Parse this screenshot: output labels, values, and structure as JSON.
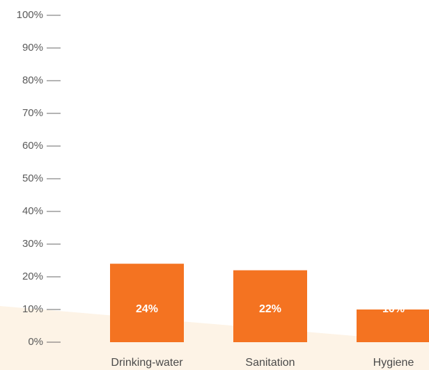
{
  "chart_data": {
    "type": "bar",
    "categories": [
      "Drinking-water",
      "Sanitation",
      "Hygiene"
    ],
    "values": [
      24,
      22,
      10
    ],
    "data_labels": [
      "24%",
      "22%",
      "10%"
    ],
    "ylim": [
      0,
      100
    ],
    "y_ticks": [
      0,
      10,
      20,
      30,
      40,
      50,
      60,
      70,
      80,
      90,
      100
    ],
    "y_tick_labels": [
      "0%",
      "10%",
      "20%",
      "30%",
      "40%",
      "50%",
      "60%",
      "70%",
      "80%",
      "90%",
      "100%"
    ],
    "grid": false,
    "legend": "none",
    "colors": {
      "bar": "#f47321",
      "background_band": "#fdf3e6",
      "tick_mark": "#6a6a6a"
    }
  }
}
